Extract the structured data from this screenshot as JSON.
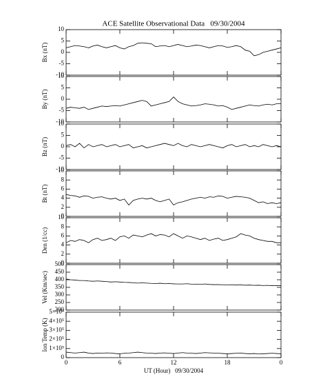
{
  "chart_data": [
    {
      "type": "line",
      "title": "ACE Satellite Observational Data   09/30/2004",
      "ylabel": "Bx (nT)",
      "color": "#000000",
      "xlim": [
        0,
        24
      ],
      "ylim": [
        -10,
        10
      ],
      "yticks": [
        -10,
        -5,
        0,
        5,
        10
      ],
      "x": [
        0,
        0.5,
        1,
        1.5,
        2,
        2.5,
        3,
        3.5,
        4,
        4.5,
        5,
        5.5,
        6,
        6.5,
        7,
        7.5,
        8,
        8.5,
        9,
        9.5,
        10,
        10.5,
        11,
        11.5,
        12,
        12.5,
        13,
        13.5,
        14,
        14.5,
        15,
        15.5,
        16,
        16.5,
        17,
        17.5,
        18,
        18.5,
        19,
        19.5,
        20,
        20.5,
        21,
        21.5,
        22,
        22.5,
        23,
        23.5,
        24
      ],
      "values": [
        2,
        2.5,
        3,
        2.8,
        2.5,
        2,
        2.8,
        3.2,
        2.5,
        2,
        2.5,
        3,
        2,
        1.5,
        2.5,
        3,
        4,
        4.2,
        4,
        3.8,
        2.5,
        2.8,
        3,
        2.5,
        3,
        3.5,
        3,
        2.5,
        2.8,
        3.2,
        3,
        2.5,
        2,
        2.5,
        3,
        2.8,
        2.2,
        2.5,
        3,
        2.5,
        1,
        0.5,
        -1.5,
        -1,
        0,
        0.5,
        1,
        1.5,
        2
      ]
    },
    {
      "type": "line",
      "ylabel": "By (nT)",
      "color": "#000000",
      "xlim": [
        0,
        24
      ],
      "ylim": [
        -10,
        10
      ],
      "yticks": [
        -10,
        -5,
        0,
        5,
        10
      ],
      "x": [
        0,
        0.5,
        1,
        1.5,
        2,
        2.5,
        3,
        3.5,
        4,
        4.5,
        5,
        5.5,
        6,
        6.5,
        7,
        7.5,
        8,
        8.5,
        9,
        9.5,
        10,
        10.5,
        11,
        11.5,
        12,
        12.5,
        13,
        13.5,
        14,
        14.5,
        15,
        15.5,
        16,
        16.5,
        17,
        17.5,
        18,
        18.5,
        19,
        19.5,
        20,
        20.5,
        21,
        21.5,
        22,
        22.5,
        23,
        23.5,
        24
      ],
      "values": [
        -4,
        -3.5,
        -3.8,
        -4,
        -3.5,
        -4.5,
        -4,
        -3.5,
        -3,
        -3.2,
        -3,
        -2.8,
        -3,
        -2.5,
        -2,
        -1.5,
        -1,
        -0.5,
        -1,
        -3,
        -2.5,
        -2,
        -1.5,
        -1,
        1,
        -1,
        -2,
        -2.5,
        -3,
        -2.8,
        -2.5,
        -2,
        -2.2,
        -2.5,
        -3,
        -2.8,
        -3.5,
        -4.5,
        -4,
        -3.5,
        -3,
        -2.5,
        -2.8,
        -3,
        -2.5,
        -2.2,
        -2.5,
        -2,
        -2
      ]
    },
    {
      "type": "line",
      "ylabel": "Bz (nT)",
      "color": "#000000",
      "xlim": [
        0,
        24
      ],
      "ylim": [
        -10,
        10
      ],
      "yticks": [
        -10,
        -5,
        0,
        5,
        10
      ],
      "x": [
        0,
        0.5,
        1,
        1.5,
        2,
        2.5,
        3,
        3.5,
        4,
        4.5,
        5,
        5.5,
        6,
        6.5,
        7,
        7.5,
        8,
        8.5,
        9,
        9.5,
        10,
        10.5,
        11,
        11.5,
        12,
        12.5,
        13,
        13.5,
        14,
        14.5,
        15,
        15.5,
        16,
        16.5,
        17,
        17.5,
        18,
        18.5,
        19,
        19.5,
        20,
        20.5,
        21,
        21.5,
        22,
        22.5,
        23,
        23.5,
        24
      ],
      "values": [
        0.5,
        1,
        0,
        1.5,
        -0.5,
        1,
        0,
        0.5,
        1,
        0,
        0.5,
        1,
        0,
        0.5,
        1,
        -0.5,
        0,
        0.5,
        -0.5,
        0,
        0.5,
        1,
        1.5,
        1,
        0.5,
        1.5,
        0.5,
        0,
        1,
        0.5,
        0,
        0.5,
        1,
        0.5,
        0,
        -0.5,
        0.5,
        1,
        0,
        0.5,
        1,
        0,
        0.5,
        0,
        1,
        0.5,
        0,
        0.5,
        0
      ]
    },
    {
      "type": "line",
      "ylabel": "Bt (nT)",
      "color": "#000000",
      "xlim": [
        0,
        24
      ],
      "ylim": [
        0,
        10
      ],
      "yticks": [
        0,
        2,
        4,
        6,
        8,
        10
      ],
      "x": [
        0,
        0.5,
        1,
        1.5,
        2,
        2.5,
        3,
        3.5,
        4,
        4.5,
        5,
        5.5,
        6,
        6.5,
        7,
        7.5,
        8,
        8.5,
        9,
        9.5,
        10,
        10.5,
        11,
        11.5,
        12,
        12.5,
        13,
        13.5,
        14,
        14.5,
        15,
        15.5,
        16,
        16.5,
        17,
        17.5,
        18,
        18.5,
        19,
        19.5,
        20,
        20.5,
        21,
        21.5,
        22,
        22.5,
        23,
        23.5,
        24
      ],
      "values": [
        4.8,
        4.6,
        4.5,
        4.2,
        4.5,
        4.4,
        4,
        4.2,
        4.3,
        4,
        3.8,
        4,
        3.5,
        3.8,
        2.5,
        3.5,
        3.8,
        4,
        3.8,
        4,
        3.5,
        3.2,
        3.5,
        3.8,
        2.5,
        3,
        3.2,
        3.5,
        3.8,
        4,
        4.2,
        4,
        4.3,
        4.2,
        4.5,
        4.4,
        4,
        4.2,
        4.4,
        4.3,
        4.2,
        4,
        3.5,
        3,
        3.2,
        2.8,
        3,
        2.8,
        3
      ]
    },
    {
      "type": "line",
      "ylabel": "Den (1/cc)",
      "color": "#000000",
      "xlim": [
        0,
        24
      ],
      "ylim": [
        0,
        10
      ],
      "yticks": [
        0,
        2,
        4,
        6,
        8,
        10
      ],
      "x": [
        0,
        0.5,
        1,
        1.5,
        2,
        2.5,
        3,
        3.5,
        4,
        4.5,
        5,
        5.5,
        6,
        6.5,
        7,
        7.5,
        8,
        8.5,
        9,
        9.5,
        10,
        10.5,
        11,
        11.5,
        12,
        12.5,
        13,
        13.5,
        14,
        14.5,
        15,
        15.5,
        16,
        16.5,
        17,
        17.5,
        18,
        18.5,
        19,
        19.5,
        20,
        20.5,
        21,
        21.5,
        22,
        22.5,
        23,
        23.5,
        24
      ],
      "values": [
        4.5,
        5,
        4.8,
        5.2,
        5,
        4.5,
        5.2,
        5.5,
        5,
        5.2,
        5.5,
        5,
        5.8,
        6,
        5.5,
        6.2,
        6,
        5.8,
        6.2,
        6.5,
        6,
        6.3,
        6.2,
        5.8,
        6.5,
        6,
        5.5,
        6,
        5.8,
        5.5,
        5.2,
        5.5,
        5,
        5.3,
        5.5,
        5,
        5.2,
        5.5,
        5.8,
        6.5,
        6.2,
        6,
        5.5,
        5.2,
        5,
        4.8,
        4.8,
        4.5,
        4.5
      ]
    },
    {
      "type": "line",
      "ylabel": "Vel (Km/sec)",
      "color": "#000000",
      "xlim": [
        0,
        24
      ],
      "ylim": [
        200,
        500
      ],
      "yticks": [
        200,
        250,
        300,
        350,
        400,
        450,
        500
      ],
      "x": [
        0,
        0.5,
        1,
        1.5,
        2,
        2.5,
        3,
        3.5,
        4,
        4.5,
        5,
        5.5,
        6,
        6.5,
        7,
        7.5,
        8,
        8.5,
        9,
        9.5,
        10,
        10.5,
        11,
        11.5,
        12,
        12.5,
        13,
        13.5,
        14,
        14.5,
        15,
        15.5,
        16,
        16.5,
        17,
        17.5,
        18,
        18.5,
        19,
        19.5,
        20,
        20.5,
        21,
        21.5,
        22,
        22.5,
        23,
        23.5,
        24
      ],
      "values": [
        405,
        400,
        398,
        395,
        395,
        392,
        390,
        392,
        390,
        388,
        385,
        387,
        385,
        383,
        382,
        380,
        378,
        380,
        378,
        376,
        375,
        377,
        374,
        375,
        373,
        372,
        372,
        374,
        371,
        370,
        370,
        372,
        369,
        368,
        368,
        367,
        366,
        367,
        365,
        366,
        364,
        365,
        363,
        364,
        362,
        363,
        361,
        362,
        361
      ]
    },
    {
      "type": "line",
      "ylabel": "Ion Temp (K)",
      "xlabel": "UT (Hour)   09/30/2004",
      "color": "#000000",
      "xlim": [
        0,
        24
      ],
      "xticks": [
        0,
        6,
        12,
        18,
        {
          "value": 24,
          "label": "0"
        }
      ],
      "ylim": [
        0,
        500000
      ],
      "yticks": [
        0,
        {
          "value": 100000,
          "label": "1×10⁵"
        },
        {
          "value": 200000,
          "label": "2×10⁵"
        },
        {
          "value": 300000,
          "label": "3×10⁵"
        },
        {
          "value": 400000,
          "label": "4×10⁵"
        },
        {
          "value": 500000,
          "label": "5×10⁵"
        }
      ],
      "x": [
        0,
        0.5,
        1,
        1.5,
        2,
        2.5,
        3,
        3.5,
        4,
        4.5,
        5,
        5.5,
        6,
        6.5,
        7,
        7.5,
        8,
        8.5,
        9,
        9.5,
        10,
        10.5,
        11,
        11.5,
        12,
        12.5,
        13,
        13.5,
        14,
        14.5,
        15,
        15.5,
        16,
        16.5,
        17,
        17.5,
        18,
        18.5,
        19,
        19.5,
        20,
        20.5,
        21,
        21.5,
        22,
        22.5,
        23,
        23.5,
        24
      ],
      "values": [
        60000,
        55000,
        50000,
        55000,
        60000,
        50000,
        45000,
        50000,
        48000,
        52000,
        50000,
        45000,
        42000,
        48000,
        50000,
        55000,
        60000,
        55000,
        50000,
        48000,
        45000,
        50000,
        52000,
        48000,
        45000,
        50000,
        55000,
        50000,
        48000,
        45000,
        50000,
        55000,
        52000,
        50000,
        48000,
        45000,
        42000,
        45000,
        48000,
        50000,
        45000,
        42000,
        45000,
        40000,
        42000,
        45000,
        48000,
        45000,
        42000
      ]
    }
  ]
}
